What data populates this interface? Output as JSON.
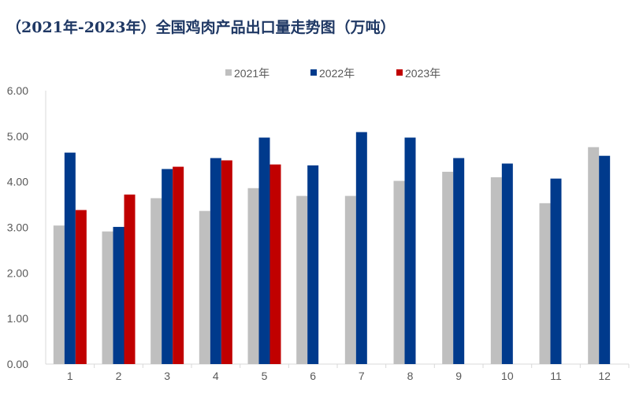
{
  "chart_data": {
    "type": "bar",
    "title": "（2021年-2023年）全国鸡肉产品出口量走势图（万吨）",
    "xlabel": "",
    "ylabel": "",
    "ylim": [
      0,
      6
    ],
    "yticks": [
      "0.00",
      "1.00",
      "2.00",
      "3.00",
      "4.00",
      "5.00",
      "6.00"
    ],
    "categories": [
      "1",
      "2",
      "3",
      "4",
      "5",
      "6",
      "7",
      "8",
      "9",
      "10",
      "11",
      "12"
    ],
    "legend_position": "top",
    "grid": false,
    "series": [
      {
        "name": "2021年",
        "color": "#bfbfbf",
        "values": [
          3.04,
          2.91,
          3.64,
          3.36,
          3.86,
          3.69,
          3.69,
          4.02,
          4.22,
          4.1,
          3.53,
          4.76
        ]
      },
      {
        "name": "2022年",
        "color": "#003a8c",
        "values": [
          4.64,
          3.01,
          4.28,
          4.52,
          4.97,
          4.36,
          5.09,
          4.97,
          4.52,
          4.4,
          4.07,
          4.57
        ]
      },
      {
        "name": "2023年",
        "color": "#c00000",
        "values": [
          3.38,
          3.72,
          4.33,
          4.47,
          4.38,
          null,
          null,
          null,
          null,
          null,
          null,
          null
        ]
      }
    ]
  }
}
